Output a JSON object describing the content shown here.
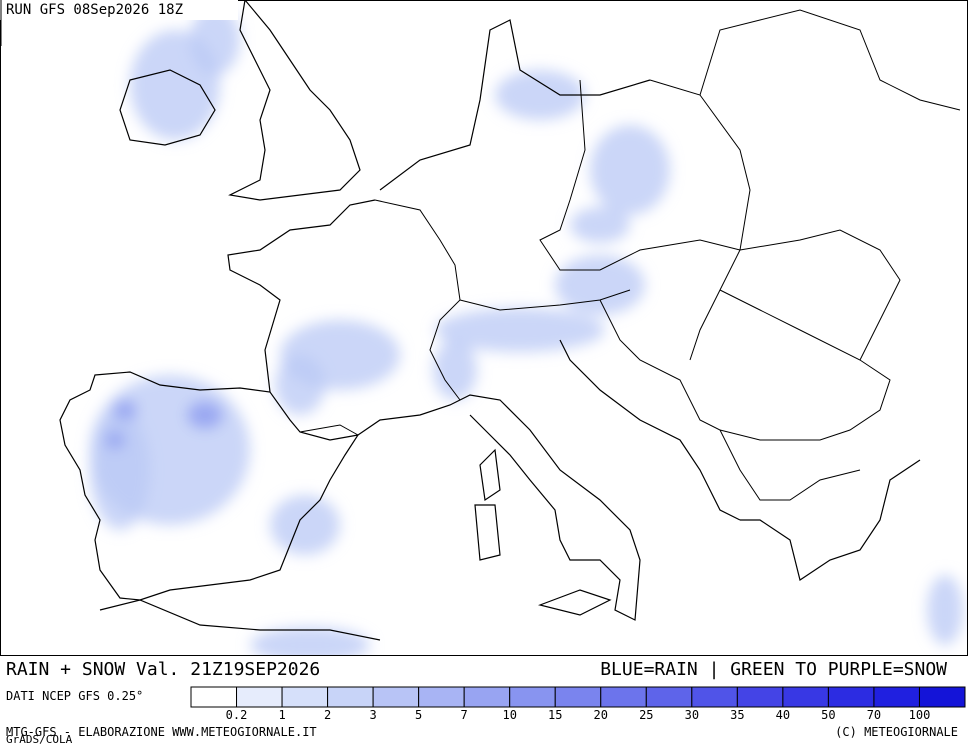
{
  "header": {
    "run": "RUN GFS 08Sep2026 18Z"
  },
  "footer": {
    "title_left": "RAIN + SNOW Val. 21Z19SEP2026",
    "title_right": "BLUE=RAIN | GREEN TO PURPLE=SNOW",
    "source": "DATI NCEP GFS 0.25°",
    "credit_left": "MTG-GFS - ELABORAZIONE WWW.METEOGIORNALE.IT",
    "credit_right": "(C) METEOGIORNALE",
    "grads": "GrADS/COLA"
  },
  "legend": {
    "thresholds": [
      0.2,
      1,
      2,
      3,
      5,
      7,
      10,
      15,
      20,
      25,
      30,
      35,
      40,
      50,
      70,
      100
    ],
    "colors": [
      "#ffffff",
      "#e6ecfc",
      "#d6e0fa",
      "#c8d4f8",
      "#b8c4f6",
      "#a8b4f4",
      "#98a4f2",
      "#8894f0",
      "#7a84ee",
      "#6c74ec",
      "#5e64ea",
      "#5054e8",
      "#4444e6",
      "#3838e4",
      "#2c2ce2",
      "#2020e0",
      "#1414d8"
    ]
  }
}
